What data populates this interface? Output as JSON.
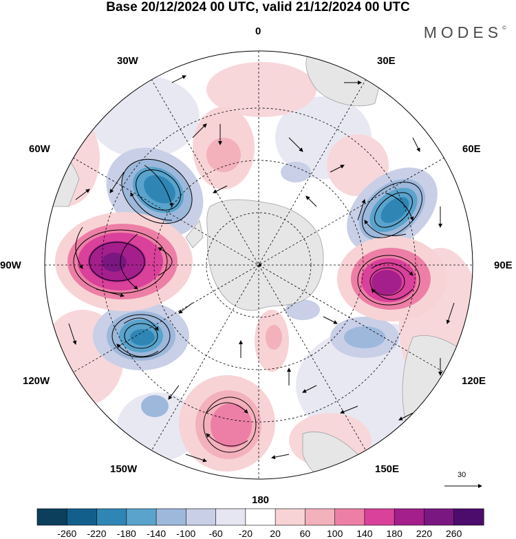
{
  "title": "Base 20/12/2024 00 UTC, valid 21/12/2024 00 UTC",
  "brand": "MODES",
  "brand_mark": "©",
  "longitude_labels": {
    "top": "0",
    "lon_30e": "30E",
    "lon_60e": "60E",
    "lon_90e": "90E",
    "lon_120e": "120E",
    "lon_150e": "150E",
    "bottom": "180",
    "lon_150w": "150W",
    "lon_120w": "120W",
    "lon_90w": "90W",
    "lon_60w": "60W",
    "lon_30w": "30W"
  },
  "reference_vector": "30",
  "colorbar": {
    "labels": [
      "-260",
      "-220",
      "-180",
      "-140",
      "-100",
      "-60",
      "-20",
      "20",
      "60",
      "100",
      "140",
      "180",
      "220",
      "260"
    ],
    "colors": [
      "#0b3f5c",
      "#135f8c",
      "#2f86b5",
      "#5aa3cc",
      "#9db8db",
      "#c8cfe6",
      "#e6e6f2",
      "#ffffff",
      "#f7d3d6",
      "#f3b1bc",
      "#ed7fa6",
      "#d9419a",
      "#a41f8c",
      "#7a1780",
      "#4b0c6b"
    ]
  },
  "field_colors": {
    "land": "#e6e6e6",
    "land_outline": "#a0a0a0",
    "grid": "#000000"
  }
}
